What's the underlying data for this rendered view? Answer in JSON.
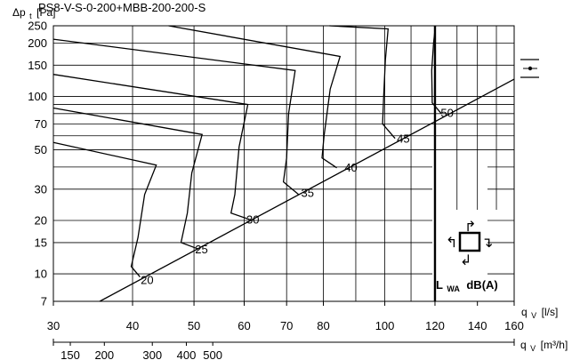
{
  "chart_data": {
    "type": "line",
    "title": "PS8-V-S-0-200+MBB-200-200-S",
    "y_axis": {
      "label_main": "Δp",
      "label_sub": "t",
      "label_unit": "[Pa]",
      "scale": "log",
      "range": [
        7,
        250
      ],
      "ticks": [
        7,
        10,
        15,
        20,
        30,
        50,
        70,
        100,
        150,
        200,
        250
      ],
      "tick_labels": [
        "7",
        "10",
        "15",
        "20",
        "30",
        "50",
        "70",
        "100",
        "150",
        "200",
        "250"
      ],
      "gridlines": [
        10,
        15,
        20,
        30,
        40,
        50,
        60,
        70,
        80,
        90,
        100,
        150,
        200,
        250
      ]
    },
    "x_axis": {
      "label_main": "q",
      "label_sub": "V",
      "label_unit": "[l/s]",
      "scale": "log",
      "range": [
        30,
        160
      ],
      "ticks": [
        30,
        40,
        50,
        60,
        70,
        80,
        100,
        120,
        140,
        160
      ],
      "tick_labels": [
        "30",
        "40",
        "50",
        "60",
        "70",
        "80",
        "100",
        "120",
        "140",
        "160"
      ],
      "gridlines": [
        30,
        40,
        50,
        60,
        70,
        80,
        90,
        100,
        110,
        120,
        130,
        140,
        150,
        160
      ]
    },
    "x2_axis": {
      "label_main": "q",
      "label_sub": "V",
      "label_unit": "[m³/h]",
      "ticks": [
        150,
        200,
        300,
        400,
        500
      ],
      "tick_labels": [
        "150",
        "200",
        "300",
        "400",
        "500"
      ]
    },
    "max_flow_line": 120,
    "max_flow_line_note": "thick vertical limit",
    "system_line": {
      "points": [
        [
          35.5,
          7
        ],
        [
          160,
          125
        ]
      ]
    },
    "sound_levels": {
      "unit_main": "L",
      "unit_sub": "WA",
      "unit_rest": "dB(A)",
      "labels": [
        {
          "text": "20",
          "q": 41.2,
          "dp": 9.3
        },
        {
          "text": "25",
          "q": 50.2,
          "dp": 13.8
        },
        {
          "text": "30",
          "q": 60.5,
          "dp": 20.3
        },
        {
          "text": "35",
          "q": 73.8,
          "dp": 28.8
        },
        {
          "text": "40",
          "q": 86.4,
          "dp": 40
        },
        {
          "text": "45",
          "q": 104.5,
          "dp": 58
        },
        {
          "text": "50",
          "q": 122.5,
          "dp": 81
        }
      ]
    },
    "damper_curves": [
      [
        [
          30,
          55
        ],
        [
          43.6,
          41
        ],
        [
          41.8,
          28
        ],
        [
          40.8,
          16
        ],
        [
          39.8,
          11
        ],
        [
          41.1,
          9.6
        ]
      ],
      [
        [
          30,
          86
        ],
        [
          51.5,
          61
        ],
        [
          49.6,
          37
        ],
        [
          48.8,
          22
        ],
        [
          47.7,
          15
        ],
        [
          50.8,
          13.8
        ]
      ],
      [
        [
          30,
          133
        ],
        [
          60.8,
          90
        ],
        [
          58.9,
          52
        ],
        [
          58,
          28
        ],
        [
          57.2,
          22
        ],
        [
          61.1,
          20.3
        ]
      ],
      [
        [
          30,
          210
        ],
        [
          72.2,
          140
        ],
        [
          70.5,
          80
        ],
        [
          70,
          45
        ],
        [
          69.2,
          33
        ],
        [
          73.1,
          28
        ]
      ],
      [
        [
          45.6,
          250
        ],
        [
          85,
          168
        ],
        [
          82,
          110
        ],
        [
          80.2,
          60
        ],
        [
          79.6,
          45
        ],
        [
          84,
          39.6
        ]
      ],
      [
        [
          81.8,
          250
        ],
        [
          101.2,
          240
        ],
        [
          100.2,
          160
        ],
        [
          99.6,
          100
        ],
        [
          99.2,
          70
        ],
        [
          103.8,
          58
        ]
      ],
      [
        [
          120.2,
          250
        ],
        [
          119.4,
          200
        ],
        [
          118.6,
          140
        ],
        [
          118.8,
          92
        ],
        [
          122.8,
          80
        ]
      ]
    ],
    "legend_icon_glyphs": {
      "top_arrow": "↱",
      "left_arrow": "↰",
      "right_arrow": "↴",
      "bottom_arrow": "↲"
    },
    "grid": true
  }
}
